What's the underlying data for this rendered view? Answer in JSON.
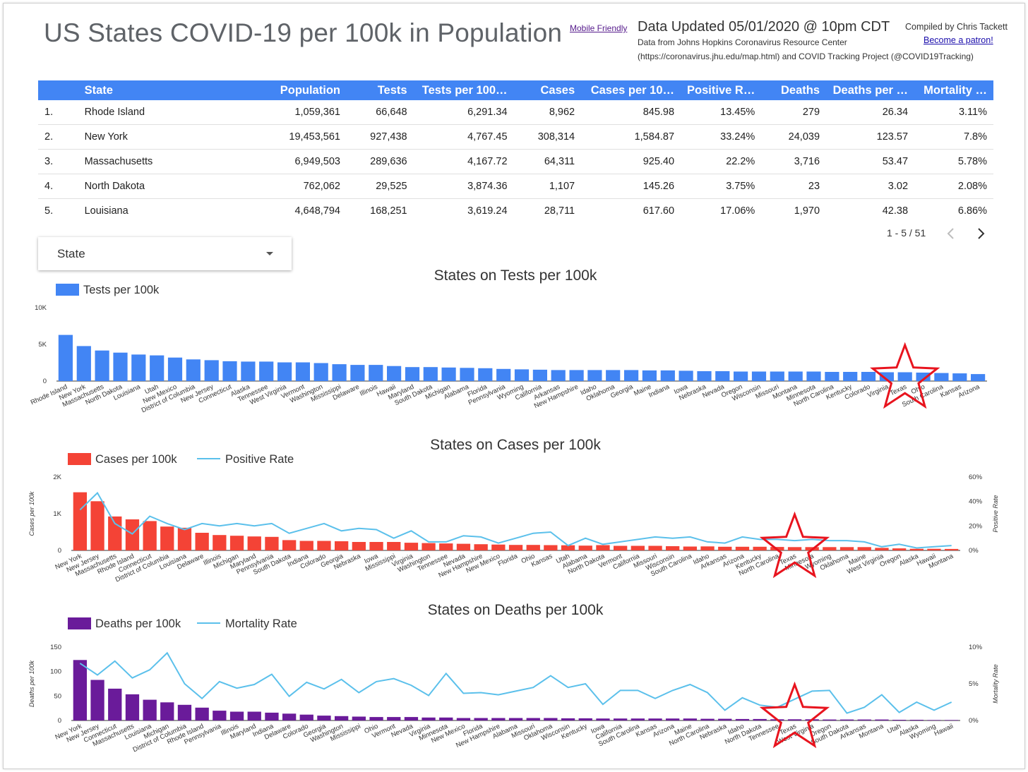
{
  "header": {
    "title": "US States COVID-19 per 100k in Population",
    "mobile_link": "Mobile Friendly",
    "updated": "Data Updated 05/01/2020 @ 10pm CDT",
    "source_line1": "Data from Johns Hopkins Coronavirus Resource Center",
    "source_line2": "(https://coronavirus.jhu.edu/map.html) and COVID Tracking Project (@COVID19Tracking)",
    "compiled_by": "Compiled by Chris Tackett",
    "patron_link": "Become a patron!"
  },
  "table": {
    "columns": [
      "",
      "State",
      "Population",
      "Tests",
      "Tests per 100…",
      "Cases",
      "Cases per 10…",
      "Positive R…",
      "Deaths",
      "Deaths per …",
      "Mortality …"
    ],
    "rows": [
      [
        "1.",
        "Rhode Island",
        "1,059,361",
        "66,648",
        "6,291.34",
        "8,962",
        "845.98",
        "13.45%",
        "279",
        "26.34",
        "3.11%"
      ],
      [
        "2.",
        "New York",
        "19,453,561",
        "927,438",
        "4,767.45",
        "308,314",
        "1,584.87",
        "33.24%",
        "24,039",
        "123.57",
        "7.8%"
      ],
      [
        "3.",
        "Massachusetts",
        "6,949,503",
        "289,636",
        "4,167.72",
        "64,311",
        "925.40",
        "22.2%",
        "3,716",
        "53.47",
        "5.78%"
      ],
      [
        "4.",
        "North Dakota",
        "762,062",
        "29,525",
        "3,874.36",
        "1,107",
        "145.26",
        "3.75%",
        "23",
        "3.02",
        "2.08%"
      ],
      [
        "5.",
        "Louisiana",
        "4,648,794",
        "168,251",
        "3,619.24",
        "28,711",
        "617.60",
        "17.06%",
        "1,970",
        "42.38",
        "6.86%"
      ]
    ],
    "pager": "1 - 5 / 51"
  },
  "filter": {
    "label": "State"
  },
  "colors": {
    "blue": "#4285f4",
    "red": "#f44336",
    "purple": "#6a1b9a",
    "line": "#5bc0eb",
    "star": "#e8141e",
    "header": "#4285f4"
  },
  "chart_data": [
    {
      "type": "bar",
      "title": "States on Tests per 100k",
      "legend": [
        "Tests per 100k"
      ],
      "ylabel": "",
      "ylim": [
        0,
        10000
      ],
      "yticks": [
        "0",
        "5K",
        "10K"
      ],
      "highlight": "Texas",
      "categories": [
        "Rhode Island",
        "New York",
        "Massachusetts",
        "North Dakota",
        "Louisiana",
        "Utah",
        "New Mexico",
        "District of Columbia",
        "New Jersey",
        "Connecticut",
        "Alaska",
        "Tennessee",
        "West Virginia",
        "Vermont",
        "Washington",
        "Mississippi",
        "Delaware",
        "Illinois",
        "Hawaii",
        "Maryland",
        "South Dakota",
        "Michigan",
        "Alabama",
        "Florida",
        "Pennsylvania",
        "Wyoming",
        "California",
        "Arkansas",
        "New Hampshire",
        "Idaho",
        "Oklahoma",
        "Georgia",
        "Maine",
        "Indiana",
        "Iowa",
        "Nebraska",
        "Nevada",
        "Oregon",
        "Wisconsin",
        "Missouri",
        "Montana",
        "Minnesota",
        "North Carolina",
        "Kentucky",
        "Colorado",
        "Virginia",
        "Texas",
        "Ohio",
        "South Carolina",
        "Kansas",
        "Arizona"
      ],
      "values": [
        6291,
        4767,
        4168,
        3874,
        3619,
        3500,
        3200,
        2950,
        2850,
        2700,
        2650,
        2650,
        2550,
        2550,
        2450,
        2300,
        2200,
        2200,
        2050,
        1900,
        1900,
        1850,
        1800,
        1750,
        1650,
        1600,
        1550,
        1500,
        1500,
        1500,
        1500,
        1500,
        1450,
        1450,
        1400,
        1350,
        1350,
        1300,
        1300,
        1300,
        1300,
        1300,
        1250,
        1250,
        1250,
        1200,
        1200,
        1150,
        1100,
        1050,
        950
      ]
    },
    {
      "type": "bar+line",
      "title": "States on Cases per 100k",
      "legend": [
        "Cases per 100k",
        "Positive Rate"
      ],
      "ylabel": "Cases per 100k",
      "y2label": "Positive Rate",
      "ylim": [
        0,
        2000
      ],
      "yticks": [
        "0",
        "1K",
        "2K"
      ],
      "y2lim": [
        0,
        60
      ],
      "y2ticks": [
        "0%",
        "20%",
        "40%",
        "60%"
      ],
      "highlight": "Texas",
      "categories": [
        "New York",
        "New Jersey",
        "Massachusetts",
        "Rhode Island",
        "Connecticut",
        "District of Columbia",
        "Louisiana",
        "Delaware",
        "Illinois",
        "Michigan",
        "Maryland",
        "Pennsylvania",
        "South Dakota",
        "Indiana",
        "Colorado",
        "Georgia",
        "Nebraska",
        "Iowa",
        "Mississippi",
        "Virginia",
        "Washington",
        "Tennessee",
        "Nevada",
        "New Hampshire",
        "New Mexico",
        "Florida",
        "Ohio",
        "Kansas",
        "Utah",
        "Alabama",
        "North Dakota",
        "Vermont",
        "California",
        "Missouri",
        "Wisconsin",
        "South Carolina",
        "Idaho",
        "Arkansas",
        "Arizona",
        "Kentucky",
        "North Carolina",
        "Texas",
        "Minnesota",
        "Wyoming",
        "Oklahoma",
        "Maine",
        "West Virginia",
        "Oregon",
        "Alaska",
        "Hawaii",
        "Montana"
      ],
      "values": [
        1585,
        1340,
        925,
        846,
        800,
        650,
        618,
        480,
        420,
        400,
        380,
        370,
        280,
        260,
        260,
        250,
        230,
        230,
        230,
        210,
        200,
        190,
        180,
        170,
        160,
        150,
        150,
        145,
        140,
        130,
        145,
        125,
        125,
        125,
        115,
        105,
        110,
        100,
        100,
        100,
        95,
        90,
        90,
        90,
        90,
        90,
        70,
        55,
        45,
        45,
        40
      ],
      "line_values": [
        33.2,
        47,
        22,
        13.5,
        28,
        22,
        17,
        22,
        20,
        22,
        20,
        22,
        14,
        18,
        22,
        16,
        18,
        17,
        10,
        16,
        7,
        7,
        12,
        11,
        6,
        10,
        14,
        15,
        4,
        10,
        5,
        7,
        9,
        11,
        10,
        11,
        7,
        6,
        11,
        9,
        9,
        8,
        9,
        8,
        8,
        7,
        3,
        5,
        2,
        3,
        4
      ]
    },
    {
      "type": "bar+line",
      "title": "States on Deaths per 100k",
      "legend": [
        "Deaths per 100k",
        "Mortality Rate"
      ],
      "ylabel": "Deaths per 100k",
      "y2label": "Mortality Rate",
      "ylim": [
        0,
        150
      ],
      "yticks": [
        "0",
        "50",
        "100",
        "150"
      ],
      "y2lim": [
        0,
        10
      ],
      "y2ticks": [
        "0%",
        "5%",
        "10%"
      ],
      "highlight": "Texas",
      "categories": [
        "New York",
        "New Jersey",
        "Connecticut",
        "Massachusetts",
        "Louisiana",
        "Michigan",
        "District of Columbia",
        "Rhode Island",
        "Pennsylvania",
        "Illinois",
        "Maryland",
        "Indiana",
        "Delaware",
        "Colorado",
        "Georgia",
        "Washington",
        "Mississippi",
        "Ohio",
        "Vermont",
        "Nevada",
        "Virginia",
        "Minnesota",
        "New Mexico",
        "Florida",
        "New Hampshire",
        "Alabama",
        "Missouri",
        "Oklahoma",
        "Wisconsin",
        "Kentucky",
        "Iowa",
        "California",
        "South Carolina",
        "Kansas",
        "Arizona",
        "Maine",
        "North Carolina",
        "Nebraska",
        "Idaho",
        "North Dakota",
        "Tennessee",
        "Texas",
        "West Virginia",
        "Oregon",
        "South Dakota",
        "Arkansas",
        "Montana",
        "Utah",
        "Alaska",
        "Wyoming",
        "Hawaii"
      ],
      "values": [
        123.6,
        83,
        65,
        53.5,
        42.4,
        37,
        32,
        26.3,
        20,
        18,
        18,
        16,
        14,
        12,
        10,
        9,
        8,
        7,
        7,
        7,
        6,
        6,
        5,
        5,
        5,
        5,
        5,
        5,
        4.5,
        4.5,
        4,
        4,
        4,
        4,
        4,
        4,
        3.5,
        3.5,
        3,
        3.02,
        2.5,
        2.5,
        2.5,
        2,
        2,
        2,
        2,
        1.5,
        1.5,
        1,
        1
      ],
      "line_values": [
        7.8,
        6.2,
        8.1,
        5.8,
        6.9,
        9.2,
        5,
        3,
        5.3,
        4.4,
        4.9,
        6.3,
        3.3,
        5.2,
        4.3,
        5.6,
        3.8,
        5.3,
        5.7,
        4.8,
        3.4,
        6.4,
        3.7,
        3.8,
        3.5,
        4,
        4.5,
        6.1,
        4.5,
        5,
        2.2,
        4.1,
        4.1,
        3,
        4.1,
        4.9,
        3.8,
        1.4,
        3.1,
        2.1,
        1.8,
        2.9,
        4,
        4.1,
        1,
        1.8,
        3.5,
        1.1,
        2.5,
        1.4,
        2.5
      ]
    }
  ]
}
